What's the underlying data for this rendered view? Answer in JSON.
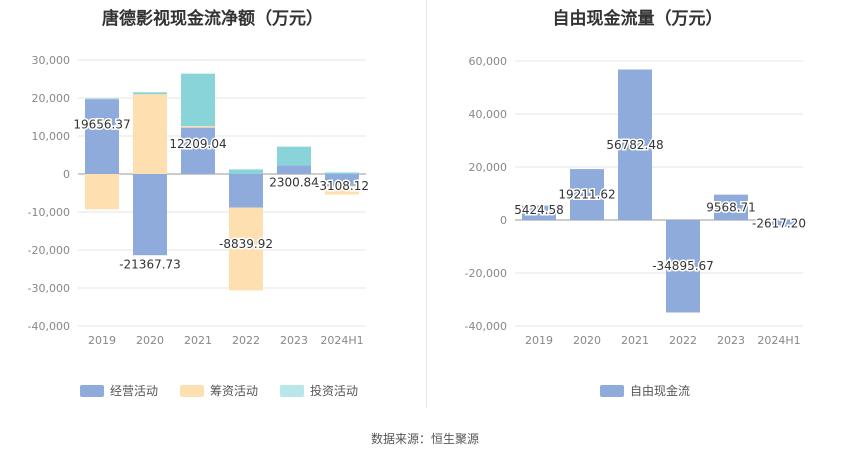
{
  "source_text": "数据来源：恒生聚源",
  "colors": {
    "operating": "#8eabdc",
    "financing": "#fedfb0",
    "investing": "#88d4d8",
    "free_cash_flow": "#8eabdc",
    "grid": "#e6e6e6",
    "axis_text": "#888888"
  },
  "chart_data": [
    {
      "type": "bar",
      "stacked": true,
      "title": "唐德影视现金流净额（万元）",
      "categories": [
        "2019",
        "2020",
        "2021",
        "2022",
        "2023",
        "2024H1"
      ],
      "ylim": [
        -40000,
        30000
      ],
      "yticks": [
        30000,
        20000,
        10000,
        0,
        -10000,
        -20000,
        -30000,
        -40000
      ],
      "ytick_labels": [
        "30,000",
        "20,000",
        "10,000",
        "0",
        "-10,000",
        "-20,000",
        "-30,000",
        "-40,000"
      ],
      "grid": true,
      "legend_position": "bottom",
      "series": [
        {
          "name": "经营活动",
          "color": "#8eabdc",
          "values": [
            19656.37,
            -21367.73,
            12209.04,
            -8839.92,
            2300.84,
            -3108.12
          ]
        },
        {
          "name": "筹资活动",
          "color": "#fedfb0",
          "values": [
            -9300,
            21000,
            400,
            -21800,
            0,
            -2300
          ]
        },
        {
          "name": "投资活动",
          "color": "#88d4d8",
          "values": [
            200,
            500,
            13800,
            1200,
            4900,
            400
          ]
        }
      ],
      "data_labels": [
        "19656.37",
        "-21367.73",
        "12209.04",
        "-8839.92",
        "2300.84",
        "-3108.12"
      ]
    },
    {
      "type": "bar",
      "title": "自由现金流量（万元）",
      "categories": [
        "2019",
        "2020",
        "2021",
        "2022",
        "2023",
        "2024H1"
      ],
      "ylim": [
        -40000,
        60000
      ],
      "yticks": [
        60000,
        40000,
        20000,
        0,
        -20000,
        -40000
      ],
      "ytick_labels": [
        "60,000",
        "40,000",
        "20,000",
        "0",
        "-20,000",
        "-40,000"
      ],
      "grid": true,
      "legend_position": "bottom",
      "series": [
        {
          "name": "自由现金流",
          "color": "#8eabdc",
          "values": [
            5424.58,
            19211.62,
            56782.48,
            -34895.67,
            9568.71,
            -2617.2
          ]
        }
      ],
      "data_labels": [
        "5424.58",
        "19211.62",
        "56782.48",
        "-34895.67",
        "9568.71",
        "-2617.20"
      ]
    }
  ]
}
